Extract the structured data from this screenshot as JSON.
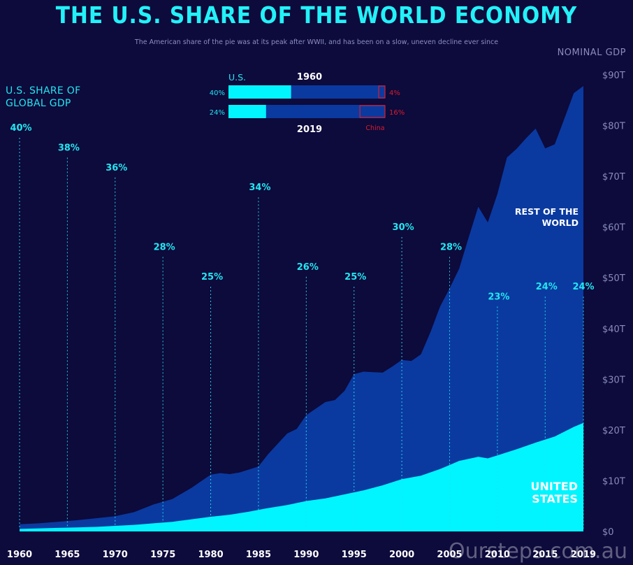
{
  "header": {
    "title": "THE U.S. SHARE OF THE WORLD ECONOMY",
    "subtitle": "The American share of the pie was at its peak after WWII, and has been on a slow, uneven decline ever since"
  },
  "labels": {
    "left_axis_title": "U.S. SHARE OF GLOBAL GDP",
    "right_axis_title": "NOMINAL GDP",
    "rest_of_world": "REST OF THE WORLD",
    "united_states": "UNITED STATES",
    "watermark": "Oursteps.com.au"
  },
  "colors": {
    "background": "#0d0a3c",
    "world_area": "#0a3aa0",
    "us_area": "#00f5ff",
    "accent": "#22e6f0",
    "china": "#d81e2a",
    "tick_text": "#8a8cba"
  },
  "inset": {
    "header_us": "U.S.",
    "bars": [
      {
        "year": "1960",
        "us_pct": "40%",
        "us_share": 40,
        "china_pct": "4%",
        "china_share": 4
      },
      {
        "year": "2019",
        "us_pct": "24%",
        "us_share": 24,
        "china_pct": "16%",
        "china_share": 16
      }
    ],
    "china_label": "China"
  },
  "chart_data": {
    "type": "area",
    "title": "THE U.S. SHARE OF THE WORLD ECONOMY",
    "x_ticks": [
      1960,
      1965,
      1970,
      1975,
      1980,
      1985,
      1990,
      1995,
      2000,
      2005,
      2010,
      2015,
      2019
    ],
    "xlim": [
      1960,
      2019
    ],
    "y_ticks": [
      "$0",
      "$10T",
      "$20T",
      "$30T",
      "$40T",
      "$50T",
      "$60T",
      "$70T",
      "$80T",
      "$90T"
    ],
    "ylim": [
      0,
      90
    ],
    "ylabel": "NOMINAL GDP",
    "series": [
      {
        "name": "UNITED STATES",
        "x": [
          1960,
          1962,
          1964,
          1966,
          1968,
          1970,
          1972,
          1974,
          1976,
          1978,
          1980,
          1982,
          1984,
          1986,
          1988,
          1990,
          1992,
          1994,
          1996,
          1998,
          2000,
          2002,
          2004,
          2006,
          2008,
          2009,
          2010,
          2012,
          2014,
          2016,
          2018,
          2019
        ],
        "values": [
          0.5,
          0.6,
          0.7,
          0.8,
          0.9,
          1.1,
          1.3,
          1.6,
          1.9,
          2.4,
          2.9,
          3.3,
          3.9,
          4.6,
          5.2,
          6.0,
          6.5,
          7.3,
          8.1,
          9.1,
          10.3,
          11.0,
          12.3,
          13.9,
          14.7,
          14.4,
          15.0,
          16.2,
          17.5,
          18.7,
          20.6,
          21.4
        ]
      },
      {
        "name": "REST OF THE WORLD",
        "x": [
          1960,
          1962,
          1964,
          1966,
          1968,
          1970,
          1972,
          1974,
          1976,
          1978,
          1980,
          1981,
          1982,
          1983,
          1984,
          1985,
          1986,
          1988,
          1989,
          1990,
          1992,
          1993,
          1994,
          1995,
          1996,
          1997,
          1998,
          1999,
          2000,
          2001,
          2002,
          2003,
          2004,
          2005,
          2006,
          2007,
          2008,
          2009,
          2010,
          2011,
          2012,
          2013,
          2014,
          2015,
          2016,
          2017,
          2018,
          2019
        ],
        "values": [
          1.4,
          1.6,
          1.9,
          2.2,
          2.6,
          3.0,
          3.8,
          5.3,
          6.4,
          8.6,
          11.2,
          11.5,
          11.3,
          11.6,
          12.2,
          12.8,
          15.2,
          19.3,
          20.2,
          22.9,
          25.5,
          25.9,
          27.7,
          31.0,
          31.5,
          31.4,
          31.3,
          32.5,
          33.8,
          33.6,
          34.9,
          39.3,
          44.3,
          47.9,
          51.8,
          58.0,
          64.0,
          60.9,
          66.5,
          73.7,
          75.4,
          77.5,
          79.4,
          75.5,
          76.3,
          81.3,
          86.4,
          87.8
        ]
      }
    ],
    "us_share_labels": [
      {
        "year": 1960,
        "label": "40%"
      },
      {
        "year": 1965,
        "label": "38%"
      },
      {
        "year": 1970,
        "label": "36%"
      },
      {
        "year": 1975,
        "label": "28%"
      },
      {
        "year": 1980,
        "label": "25%"
      },
      {
        "year": 1985,
        "label": "34%"
      },
      {
        "year": 1990,
        "label": "26%"
      },
      {
        "year": 1995,
        "label": "25%"
      },
      {
        "year": 2000,
        "label": "30%"
      },
      {
        "year": 2005,
        "label": "28%"
      },
      {
        "year": 2010,
        "label": "23%"
      },
      {
        "year": 2015,
        "label": "24%"
      },
      {
        "year": 2019,
        "label": "24%"
      }
    ]
  }
}
